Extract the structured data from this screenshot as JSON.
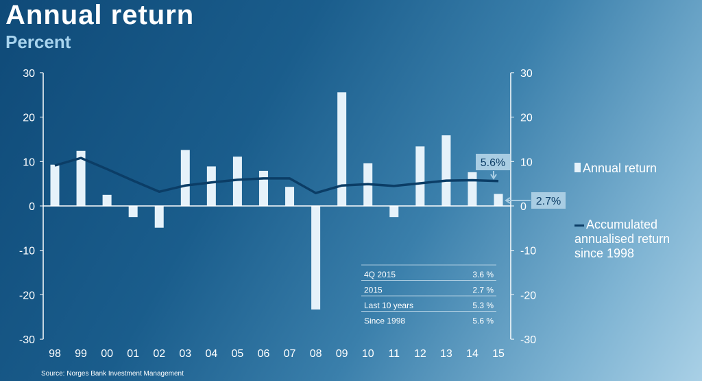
{
  "title": "Annual return",
  "subtitle": "Percent",
  "source": "Source: Norges Bank Investment Management",
  "chart_data": {
    "type": "bar+line",
    "categories": [
      "98",
      "99",
      "00",
      "01",
      "02",
      "03",
      "04",
      "05",
      "06",
      "07",
      "08",
      "09",
      "10",
      "11",
      "12",
      "13",
      "14",
      "15"
    ],
    "series": [
      {
        "name": "Annual return",
        "type": "bar",
        "color": "#e6f2fa",
        "values": [
          9.3,
          12.4,
          2.5,
          -2.5,
          -4.9,
          12.6,
          8.9,
          11.1,
          7.9,
          4.3,
          -23.3,
          25.6,
          9.6,
          -2.5,
          13.4,
          15.9,
          7.6,
          2.7
        ]
      },
      {
        "name": "Accumulated annualised return since 1998",
        "type": "line",
        "color": "#0b3d66",
        "values": [
          9.1,
          10.8,
          8.3,
          5.7,
          3.2,
          4.6,
          5.3,
          5.9,
          6.2,
          6.2,
          2.9,
          4.6,
          4.9,
          4.5,
          5.1,
          5.7,
          5.8,
          5.6
        ]
      }
    ],
    "ylim": [
      -30,
      30
    ],
    "yticks": [
      "30",
      "20",
      "10",
      "0",
      "-10",
      "-20",
      "-30"
    ],
    "annotations": [
      "5.6%",
      "2.7%"
    ],
    "legend_lines": [
      "Accumulated",
      "annualised return",
      "since 1998"
    ],
    "table": [
      [
        "4Q 2015",
        "3.6 %"
      ],
      [
        "2015",
        "2.7 %"
      ],
      [
        "Last 10 years",
        "5.3 %"
      ],
      [
        "Since 1998",
        "5.6 %"
      ]
    ]
  }
}
